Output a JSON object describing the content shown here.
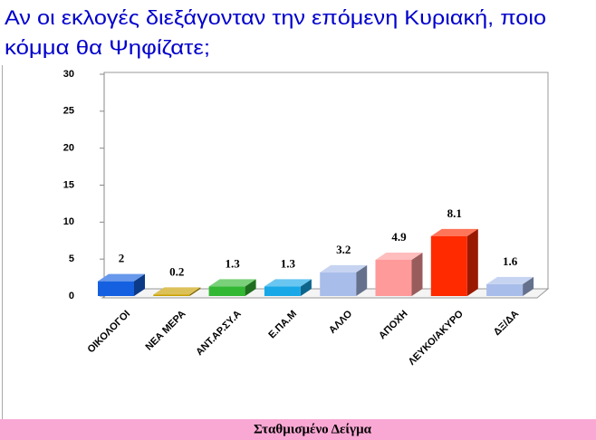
{
  "chart_data": {
    "type": "bar",
    "title": "Αν οι εκλογές διεξάγονταν την επόμενη Κυριακή, ποιο",
    "title_line2": "κόμμα θα Ψηφίζατε;",
    "footer": "Σταθμισμένο Δείγμα",
    "categories": [
      "ΟΙΚΟΛΟΓΟΙ",
      "ΝΕΑ ΜΕΡΑ",
      "ΑΝΤ.ΑΡ.ΣΥ.Α",
      "Ε.ΠΑ.Μ",
      "ΑΛΛΟ",
      "ΑΠΟΧΗ",
      "ΛΕΥΚΟ/ΑΚΥΡΟ",
      "ΔΞ/ΔΑ"
    ],
    "values": [
      2,
      0.2,
      1.3,
      1.3,
      3.2,
      4.9,
      8.1,
      1.6
    ],
    "colors": [
      "#1560e0",
      "#c9a000",
      "#33b833",
      "#18a8e8",
      "#a9bdea",
      "#ff9a9a",
      "#ff2a00",
      "#a9bdea"
    ],
    "ylim": [
      0,
      30
    ],
    "yticks": [
      0,
      5,
      10,
      15,
      20,
      25,
      30
    ]
  }
}
